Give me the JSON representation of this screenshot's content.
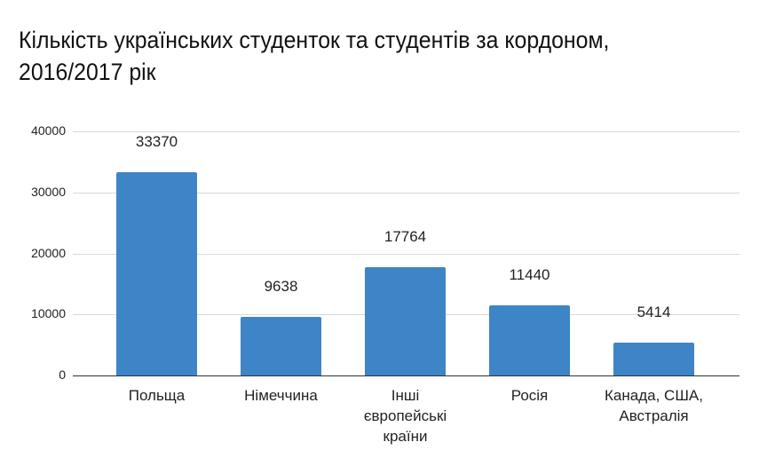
{
  "chart_data": {
    "type": "bar",
    "title": "Кількість українських студенток та студентів за кордоном, 2016/2017 рік",
    "xlabel": "",
    "ylabel": "",
    "categories": [
      "Польща",
      "Німеччина",
      "Інші європейські країни",
      "Росія",
      "Канада, США, Австралія"
    ],
    "category_lines": [
      [
        "Польща"
      ],
      [
        "Німеччина"
      ],
      [
        "Інші",
        "європейські",
        "країни"
      ],
      [
        "Росія"
      ],
      [
        "Канада, США,",
        "Австралія"
      ]
    ],
    "values": [
      33370,
      9638,
      17764,
      11440,
      5414
    ],
    "data_labels": [
      "33370",
      "9638",
      "17764",
      "11440",
      "5414"
    ],
    "ylim": [
      0,
      40000
    ],
    "yticks": [
      "0",
      "10000",
      "20000",
      "30000",
      "40000"
    ],
    "grid": true,
    "legend": "none",
    "bar_color": "#3d85c6"
  }
}
